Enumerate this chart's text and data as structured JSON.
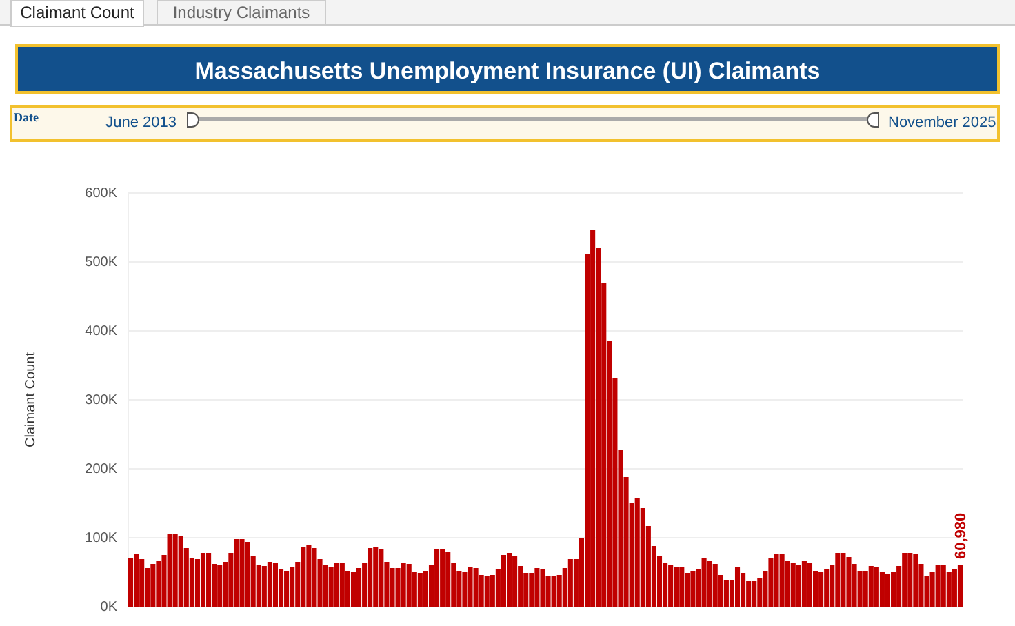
{
  "chart_data": {
    "type": "bar",
    "title": "Massachusetts Unemployment Insurance (UI) Claimants",
    "ylabel": "Claimant Count",
    "annotations": [
      "Claimant Count",
      "Industry Claimants",
      "Date",
      "June 2013",
      "November 2025"
    ],
    "categories": [
      null,
      null,
      null,
      null,
      null,
      null,
      null,
      null,
      null,
      null,
      null,
      null,
      null,
      null,
      null,
      null,
      null,
      null,
      null,
      null,
      null,
      null,
      null,
      null,
      null,
      null,
      null,
      null,
      null,
      null,
      null,
      null,
      null,
      null,
      null,
      null,
      null,
      null,
      null,
      null,
      null,
      null,
      null,
      null,
      null,
      null,
      null,
      null,
      null,
      null,
      null,
      null,
      null,
      null,
      null,
      null,
      null,
      null,
      null,
      null,
      null,
      null,
      null,
      null,
      null,
      null,
      null,
      null,
      null,
      null,
      null,
      null,
      null,
      null,
      null,
      null,
      null,
      null,
      null,
      null,
      null,
      null,
      null,
      null,
      null,
      null,
      null,
      null,
      null,
      null,
      null,
      null,
      null,
      null,
      null,
      null,
      null,
      null,
      null,
      null,
      null,
      null,
      null,
      null,
      null,
      null,
      null,
      null,
      null,
      null,
      null,
      null,
      null,
      null,
      null,
      null,
      null,
      null,
      null,
      null,
      null,
      null,
      null,
      null,
      null,
      null,
      null,
      null,
      null,
      null,
      null,
      null,
      null,
      null,
      null,
      null,
      null,
      null,
      null,
      null,
      null,
      null,
      null,
      null,
      null,
      null,
      null,
      null,
      null,
      null
    ],
    "values": [
      71000,
      76000,
      69000,
      56000,
      62000,
      66000,
      75000,
      106000,
      106000,
      102000,
      85000,
      71000,
      69000,
      78000,
      78000,
      62000,
      60000,
      65000,
      78000,
      98000,
      98000,
      94000,
      73000,
      60000,
      59000,
      65000,
      64000,
      54000,
      52000,
      57000,
      65000,
      86000,
      89000,
      85000,
      69000,
      60000,
      57000,
      64000,
      64000,
      52000,
      50000,
      56000,
      64000,
      85000,
      86000,
      83000,
      65000,
      56000,
      56000,
      64000,
      62000,
      50000,
      49000,
      52000,
      61000,
      83000,
      83000,
      79000,
      64000,
      52000,
      50000,
      58000,
      56000,
      46000,
      44000,
      46000,
      54000,
      75000,
      78000,
      74000,
      59000,
      49000,
      49000,
      56000,
      54000,
      44000,
      44000,
      46000,
      56000,
      69000,
      69000,
      99000,
      512000,
      546000,
      521000,
      469000,
      386000,
      332000,
      228000,
      188000,
      151000,
      157000,
      143000,
      117000,
      88000,
      73000,
      63000,
      61000,
      58000,
      58000,
      49000,
      52000,
      54000,
      71000,
      67000,
      62000,
      46000,
      39000,
      39000,
      57000,
      49000,
      37000,
      37000,
      42000,
      52000,
      71000,
      76000,
      76000,
      67000,
      64000,
      60000,
      66000,
      64000,
      52000,
      51000,
      54000,
      61000,
      78000,
      78000,
      72000,
      62000,
      52000,
      52000,
      59000,
      57000,
      50000,
      47000,
      51000,
      59000,
      78000,
      78000,
      76000,
      62000,
      44000,
      51000,
      61000,
      61000,
      51000,
      54000,
      60980
    ],
    "value_labels": [
      null,
      null,
      null,
      null,
      null,
      null,
      null,
      null,
      null,
      null,
      null,
      null,
      null,
      null,
      null,
      null,
      null,
      null,
      null,
      null,
      null,
      null,
      null,
      null,
      null,
      null,
      null,
      null,
      null,
      null,
      null,
      null,
      null,
      null,
      null,
      null,
      null,
      null,
      null,
      null,
      null,
      null,
      null,
      null,
      null,
      null,
      null,
      null,
      null,
      null,
      null,
      null,
      null,
      null,
      null,
      null,
      null,
      null,
      null,
      null,
      null,
      null,
      null,
      null,
      null,
      null,
      null,
      null,
      null,
      null,
      null,
      null,
      null,
      null,
      null,
      null,
      null,
      null,
      null,
      null,
      null,
      null,
      null,
      null,
      null,
      null,
      null,
      null,
      null,
      null,
      null,
      null,
      null,
      null,
      null,
      null,
      null,
      null,
      null,
      null,
      null,
      null,
      null,
      null,
      null,
      null,
      null,
      null,
      null,
      null,
      null,
      null,
      null,
      null,
      null,
      null,
      null,
      null,
      null,
      null,
      null,
      null,
      null,
      null,
      null,
      null,
      null,
      null,
      null,
      null,
      null,
      null,
      null,
      null,
      null,
      null,
      null,
      null,
      null,
      null,
      null,
      null,
      null,
      null,
      null,
      null,
      null,
      null,
      null,
      "60,980"
    ],
    "color": "#c00000",
    "ylim": [
      0,
      600000
    ],
    "yticks": [
      {
        "value": 0,
        "label": "0K"
      },
      {
        "value": 100000,
        "label": "100K"
      },
      {
        "value": 200000,
        "label": "200K"
      },
      {
        "value": 300000,
        "label": "300K"
      },
      {
        "value": 400000,
        "label": "400K"
      },
      {
        "value": 500000,
        "label": "500K"
      },
      {
        "value": 600000,
        "label": "600K"
      }
    ],
    "grid": "y"
  }
}
